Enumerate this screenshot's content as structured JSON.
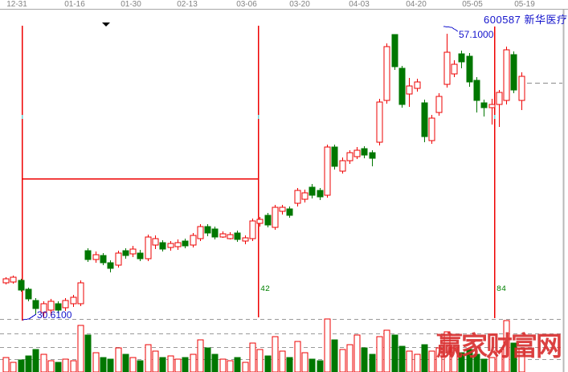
{
  "header": {
    "code": "600587",
    "name": "新华医疗"
  },
  "annotations": {
    "peak_price": "57.1000",
    "low_price": "30.6100",
    "count_first": "42",
    "count_second": "84"
  },
  "watermark": {
    "text": "赢家财富网"
  },
  "colors": {
    "up": "#ee0000",
    "down": "#007700",
    "line_red": "#ee0000",
    "annotation_blue": "#1414cc",
    "count_green": "#008000",
    "axis_gray": "#a8a8a8",
    "grid_gray": "#9a9a9a",
    "border_gray": "#b8b8b8",
    "tick_cyan": "#6ad0d0",
    "watermark_red": "#d93030"
  },
  "chart_data": {
    "type": "candlestick",
    "title": "600587 新华医疗 daily K-line with volume",
    "x_tick_labels": [
      "12-31",
      "01-16",
      "01-30",
      "02-13",
      "03-06",
      "03-20",
      "04-03",
      "04-20",
      "05-05",
      "05-19"
    ],
    "ylim": [
      30.0,
      58.0
    ],
    "grid": "dashed gridlines in volume pane only",
    "legend_position": "none",
    "high_annotation": {
      "value": 57.1,
      "label": "57.1000"
    },
    "low_annotation": {
      "value": 30.61,
      "label": "30.6100"
    },
    "vertical_line_bar_counts": [
      "42",
      "84"
    ],
    "horizontal_red_line_value": 43.6,
    "last_close_dashed_value": 52.5,
    "ohlc": [
      [
        33.91,
        34.44,
        33.76,
        34.29
      ],
      [
        33.99,
        34.59,
        33.84,
        34.44
      ],
      [
        34.14,
        34.29,
        33.09,
        33.24
      ],
      [
        33.31,
        33.46,
        32.19,
        32.42
      ],
      [
        32.27,
        32.49,
        31.0,
        31.52
      ],
      [
        31.15,
        32.19,
        30.62,
        31.97
      ],
      [
        31.37,
        32.42,
        30.84,
        32.19
      ],
      [
        31.97,
        32.19,
        31.07,
        31.37
      ],
      [
        31.6,
        32.49,
        31.3,
        32.27
      ],
      [
        31.97,
        32.79,
        31.67,
        32.57
      ],
      [
        31.97,
        34.14,
        31.75,
        33.91
      ],
      [
        36.9,
        37.13,
        35.86,
        36.08
      ],
      [
        36.08,
        36.83,
        35.78,
        36.53
      ],
      [
        36.45,
        36.68,
        35.56,
        35.78
      ],
      [
        35.78,
        36.01,
        34.89,
        35.26
      ],
      [
        35.56,
        36.9,
        35.33,
        36.68
      ],
      [
        36.9,
        37.13,
        36.15,
        36.45
      ],
      [
        36.6,
        37.35,
        36.3,
        37.05
      ],
      [
        36.68,
        36.98,
        35.93,
        36.15
      ],
      [
        36.15,
        38.4,
        35.93,
        38.17
      ],
      [
        37.43,
        38.32,
        37.05,
        38.02
      ],
      [
        37.65,
        37.87,
        36.83,
        37.05
      ],
      [
        37.2,
        37.8,
        36.9,
        37.58
      ],
      [
        37.28,
        37.95,
        36.98,
        37.65
      ],
      [
        37.8,
        38.02,
        37.13,
        37.35
      ],
      [
        37.43,
        38.55,
        37.2,
        38.32
      ],
      [
        38.02,
        39.37,
        37.8,
        39.15
      ],
      [
        39.15,
        39.37,
        38.25,
        38.55
      ],
      [
        38.92,
        39.15,
        37.95,
        38.17
      ],
      [
        38.17,
        38.7,
        38.1,
        38.47
      ],
      [
        38.02,
        38.62,
        37.95,
        38.4
      ],
      [
        38.55,
        38.77,
        37.73,
        37.95
      ],
      [
        37.8,
        38.32,
        37.5,
        38.1
      ],
      [
        38.02,
        39.9,
        37.8,
        39.67
      ],
      [
        39.45,
        40.05,
        39.15,
        39.82
      ],
      [
        40.2,
        40.42,
        39.07,
        39.3
      ],
      [
        39.07,
        41.17,
        38.85,
        40.94
      ],
      [
        40.57,
        41.17,
        40.27,
        40.94
      ],
      [
        40.79,
        41.02,
        39.97,
        40.2
      ],
      [
        41.32,
        42.74,
        41.02,
        42.51
      ],
      [
        41.69,
        42.59,
        41.39,
        42.29
      ],
      [
        42.81,
        43.11,
        41.76,
        42.06
      ],
      [
        42.51,
        42.74,
        41.61,
        41.91
      ],
      [
        42.06,
        46.78,
        41.84,
        46.55
      ],
      [
        46.55,
        46.78,
        44.46,
        44.76
      ],
      [
        44.31,
        45.58,
        44.09,
        45.28
      ],
      [
        45.28,
        46.25,
        44.98,
        46.03
      ],
      [
        45.66,
        46.55,
        45.43,
        46.25
      ],
      [
        46.4,
        46.62,
        45.51,
        45.8
      ],
      [
        46.03,
        46.25,
        44.76,
        45.51
      ],
      [
        47.0,
        51.04,
        46.7,
        50.74
      ],
      [
        50.89,
        56.2,
        50.59,
        55.9
      ],
      [
        57.03,
        57.06,
        53.73,
        54.03
      ],
      [
        53.88,
        54.11,
        50.22,
        50.52
      ],
      [
        51.49,
        52.99,
        50.29,
        52.24
      ],
      [
        52.01,
        52.91,
        51.71,
        52.61
      ],
      [
        50.67,
        50.97,
        47.0,
        47.53
      ],
      [
        47.15,
        49.55,
        46.85,
        49.25
      ],
      [
        49.77,
        51.56,
        49.47,
        51.26
      ],
      [
        52.39,
        57.1,
        52.09,
        55.38
      ],
      [
        53.36,
        54.63,
        53.06,
        54.26
      ],
      [
        55.23,
        55.53,
        53.88,
        54.48
      ],
      [
        55.0,
        55.3,
        52.16,
        52.61
      ],
      [
        52.76,
        53.06,
        49.77,
        50.89
      ],
      [
        50.67,
        50.97,
        49.4,
        50.22
      ],
      [
        50.22,
        51.04,
        48.65,
        50.52
      ],
      [
        50.52,
        51.86,
        48.42,
        51.64
      ],
      [
        50.89,
        55.9,
        50.52,
        55.6
      ],
      [
        55.15,
        55.45,
        51.56,
        51.86
      ],
      [
        50.89,
        53.51,
        49.99,
        53.13
      ]
    ],
    "volume": [
      18,
      12,
      15,
      20,
      28,
      22,
      14,
      12,
      16,
      14,
      58,
      46,
      24,
      18,
      16,
      30,
      22,
      18,
      14,
      34,
      26,
      18,
      20,
      16,
      18,
      22,
      40,
      30,
      22,
      16,
      14,
      18,
      12,
      36,
      28,
      20,
      44,
      26,
      18,
      38,
      24,
      16,
      14,
      66,
      40,
      28,
      34,
      46,
      30,
      22,
      44,
      52,
      46,
      32,
      26,
      22,
      34,
      26,
      30,
      50,
      30,
      24,
      28,
      22,
      16,
      18,
      26,
      64,
      36,
      30
    ]
  }
}
